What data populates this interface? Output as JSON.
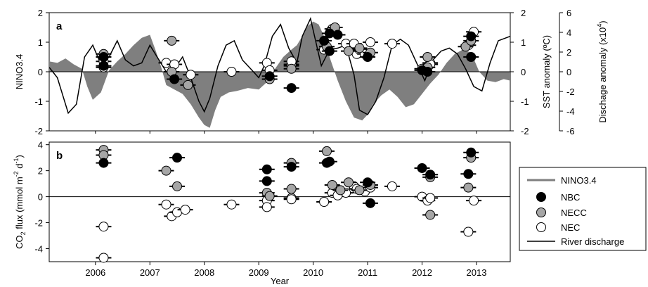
{
  "chart_data": [
    {
      "panel_label": "a",
      "type": "area",
      "ylabel": "NINO3.4",
      "ylim": [
        -2,
        2
      ],
      "y_ticks": [
        "2",
        "1",
        "0",
        "-1",
        "-2"
      ],
      "right_axis1": {
        "label": "SST anomaly (ºC)",
        "ylim": [
          -2,
          2
        ],
        "ticks": [
          "2",
          "1",
          "0",
          "-1",
          "-2"
        ]
      },
      "right_axis2": {
        "label_main": "Dischage anomaly (x10",
        "label_sup": "4",
        "label_end": ")",
        "ylim": [
          -6,
          6
        ],
        "ticks": [
          "6",
          "4",
          "2",
          "0",
          "-2",
          "-4",
          "-6"
        ]
      },
      "xlim": [
        2005.15,
        2013.62
      ],
      "nino_area": {
        "x": [
          2005.15,
          2005.3,
          2005.45,
          2005.6,
          2005.75,
          2005.85,
          2005.95,
          2006.1,
          2006.25,
          2006.4,
          2006.55,
          2006.7,
          2006.85,
          2007.0,
          2007.1,
          2007.2,
          2007.3,
          2007.45,
          2007.6,
          2007.75,
          2007.9,
          2008.0,
          2008.1,
          2008.2,
          2008.3,
          2008.45,
          2008.6,
          2008.8,
          2009.0,
          2009.15,
          2009.3,
          2009.45,
          2009.6,
          2009.7,
          2009.8,
          2009.9,
          2010.0,
          2010.1,
          2010.2,
          2010.3,
          2010.45,
          2010.6,
          2010.75,
          2010.9,
          2011.0,
          2011.1,
          2011.25,
          2011.4,
          2011.55,
          2011.7,
          2011.85,
          2012.0,
          2012.15,
          2012.3,
          2012.45,
          2012.6,
          2012.75,
          2012.9,
          2013.05,
          2013.2,
          2013.35,
          2013.5,
          2013.62
        ],
        "y": [
          0.35,
          0.3,
          0.45,
          0.25,
          0.1,
          -0.5,
          -0.95,
          -0.7,
          0.05,
          0.35,
          0.6,
          0.9,
          1.15,
          1.25,
          0.75,
          0.2,
          -0.45,
          -0.6,
          -0.75,
          -1.1,
          -1.55,
          -1.8,
          -1.9,
          -1.3,
          -0.85,
          -0.7,
          -0.65,
          -0.55,
          -0.6,
          -0.35,
          0.1,
          0.5,
          0.75,
          0.9,
          1.2,
          1.55,
          1.7,
          1.6,
          1.2,
          0.5,
          -0.3,
          -1.0,
          -1.55,
          -1.65,
          -1.45,
          -1.1,
          -0.8,
          -0.6,
          -0.85,
          -1.2,
          -1.1,
          -0.75,
          -0.4,
          -0.1,
          0.3,
          0.6,
          0.75,
          0.65,
          0.0,
          -0.3,
          -0.35,
          -0.25,
          -0.3
        ]
      },
      "discharge_line": {
        "x": [
          2005.15,
          2005.3,
          2005.5,
          2005.65,
          2005.8,
          2005.95,
          2006.1,
          2006.25,
          2006.4,
          2006.55,
          2006.7,
          2006.85,
          2007.0,
          2007.15,
          2007.3,
          2007.45,
          2007.6,
          2007.75,
          2007.9,
          2008.0,
          2008.1,
          2008.25,
          2008.4,
          2008.55,
          2008.7,
          2008.85,
          2009.0,
          2009.1,
          2009.25,
          2009.4,
          2009.55,
          2009.7,
          2009.8,
          2009.95,
          2010.05,
          2010.15,
          2010.3,
          2010.45,
          2010.6,
          2010.75,
          2010.85,
          2011.0,
          2011.15,
          2011.3,
          2011.45,
          2011.6,
          2011.75,
          2011.9,
          2012.05,
          2012.2,
          2012.35,
          2012.5,
          2012.65,
          2012.8,
          2012.95,
          2013.1,
          2013.25,
          2013.4,
          2013.62
        ],
        "y": [
          0.15,
          -0.2,
          -1.4,
          -1.1,
          0.5,
          0.9,
          0.25,
          0.5,
          1.05,
          0.4,
          0.2,
          0.3,
          0.9,
          0.45,
          0.0,
          0.1,
          0.5,
          -0.2,
          -1.0,
          -1.35,
          -0.9,
          0.2,
          0.9,
          1.05,
          0.4,
          0.1,
          -0.2,
          0.2,
          1.2,
          1.6,
          0.8,
          0.3,
          1.2,
          1.8,
          1.0,
          0.2,
          0.75,
          0.8,
          0.9,
          -0.1,
          -1.3,
          -1.45,
          -1.0,
          -0.2,
          0.9,
          1.1,
          0.9,
          0.3,
          -0.3,
          0.4,
          0.7,
          0.8,
          0.6,
          0.1,
          -0.5,
          -0.65,
          0.3,
          1.05,
          1.2
        ]
      },
      "points": {
        "NBC": [
          [
            2006.15,
            0.2
          ],
          [
            2006.15,
            0.5
          ],
          [
            2007.45,
            -0.25
          ],
          [
            2009.2,
            -0.15
          ],
          [
            2009.6,
            -0.55
          ],
          [
            2010.2,
            1.05
          ],
          [
            2010.3,
            0.7
          ],
          [
            2010.3,
            1.3
          ],
          [
            2010.45,
            1.25
          ],
          [
            2011.0,
            0.5
          ],
          [
            2012.0,
            0.05
          ],
          [
            2012.1,
            0.0
          ],
          [
            2012.9,
            0.5
          ],
          [
            2012.9,
            1.2
          ]
        ],
        "NECC": [
          [
            2006.15,
            0.6
          ],
          [
            2007.4,
            1.05
          ],
          [
            2007.7,
            -0.45
          ],
          [
            2007.4,
            0.0
          ],
          [
            2009.2,
            -0.25
          ],
          [
            2009.6,
            0.1
          ],
          [
            2010.25,
            0.85
          ],
          [
            2010.4,
            1.5
          ],
          [
            2010.65,
            0.7
          ],
          [
            2010.85,
            0.8
          ],
          [
            2011.05,
            0.65
          ],
          [
            2012.1,
            0.5
          ],
          [
            2012.1,
            0.15
          ],
          [
            2012.8,
            0.85
          ],
          [
            2012.9,
            1.05
          ]
        ],
        "NEC": [
          [
            2006.15,
            0.35
          ],
          [
            2006.15,
            0.15
          ],
          [
            2007.3,
            0.3
          ],
          [
            2007.45,
            0.25
          ],
          [
            2007.75,
            -0.1
          ],
          [
            2008.5,
            0.0
          ],
          [
            2009.15,
            0.3
          ],
          [
            2009.2,
            0.05
          ],
          [
            2009.6,
            0.2
          ],
          [
            2009.6,
            0.25
          ],
          [
            2009.6,
            0.35
          ],
          [
            2010.2,
            0.75
          ],
          [
            2010.35,
            1.45
          ],
          [
            2010.6,
            0.95
          ],
          [
            2010.75,
            0.95
          ],
          [
            2010.8,
            0.6
          ],
          [
            2010.85,
            0.75
          ],
          [
            2010.95,
            0.6
          ],
          [
            2011.05,
            1.0
          ],
          [
            2011.45,
            0.95
          ],
          [
            2012.0,
            0.1
          ],
          [
            2012.15,
            0.3
          ],
          [
            2012.15,
            0.25
          ],
          [
            2012.85,
            0.9
          ],
          [
            2012.95,
            1.35
          ]
        ]
      }
    },
    {
      "panel_label": "b",
      "type": "scatter",
      "ylabel_main": "CO",
      "ylabel_sub": "2",
      "ylabel_rest": " flux (mmol m",
      "ylabel_sup1": "-2",
      "ylabel_mid": " d",
      "ylabel_sup2": "-1",
      "ylabel_end": ")",
      "ylim": [
        -5,
        4.2
      ],
      "y_ticks": [
        "4",
        "2",
        "0",
        "-2",
        "-4"
      ],
      "xlim": [
        2005.15,
        2013.62
      ],
      "x_ticks": [
        "2006",
        "2007",
        "2008",
        "2009",
        "2010",
        "2011",
        "2012",
        "2013"
      ],
      "xlabel": "Year",
      "points": {
        "NBC": [
          [
            2006.15,
            2.6
          ],
          [
            2007.5,
            3.0
          ],
          [
            2009.15,
            2.1
          ],
          [
            2009.15,
            1.2
          ],
          [
            2009.6,
            2.3
          ],
          [
            2010.25,
            2.6
          ],
          [
            2010.3,
            2.7
          ],
          [
            2011.0,
            1.1
          ],
          [
            2011.05,
            -0.5
          ],
          [
            2012.0,
            2.2
          ],
          [
            2012.15,
            1.7
          ],
          [
            2012.85,
            1.75
          ],
          [
            2012.9,
            3.4
          ]
        ],
        "NECC": [
          [
            2006.15,
            3.6
          ],
          [
            2006.15,
            3.2
          ],
          [
            2007.3,
            2.0
          ],
          [
            2007.5,
            0.8
          ],
          [
            2009.15,
            0.3
          ],
          [
            2009.2,
            0.05
          ],
          [
            2009.6,
            0.6
          ],
          [
            2009.6,
            2.6
          ],
          [
            2010.25,
            3.5
          ],
          [
            2010.35,
            0.9
          ],
          [
            2010.5,
            0.5
          ],
          [
            2010.65,
            1.1
          ],
          [
            2010.85,
            0.5
          ],
          [
            2011.05,
            0.9
          ],
          [
            2012.15,
            1.5
          ],
          [
            2012.15,
            -1.4
          ],
          [
            2012.85,
            0.7
          ],
          [
            2012.9,
            3.0
          ]
        ],
        "NEC": [
          [
            2006.15,
            -2.3
          ],
          [
            2006.15,
            -4.7
          ],
          [
            2007.3,
            -0.6
          ],
          [
            2007.4,
            -1.5
          ],
          [
            2007.5,
            -1.2
          ],
          [
            2007.65,
            -1.0
          ],
          [
            2008.5,
            -0.6
          ],
          [
            2009.15,
            -0.3
          ],
          [
            2009.15,
            -0.8
          ],
          [
            2009.6,
            -0.1
          ],
          [
            2009.6,
            -0.2
          ],
          [
            2010.2,
            -0.4
          ],
          [
            2010.35,
            0.3
          ],
          [
            2010.45,
            0.1
          ],
          [
            2010.6,
            0.3
          ],
          [
            2010.75,
            0.8
          ],
          [
            2010.8,
            0.6
          ],
          [
            2010.95,
            0.4
          ],
          [
            2011.05,
            0.7
          ],
          [
            2011.45,
            0.8
          ],
          [
            2012.0,
            0.0
          ],
          [
            2012.1,
            -0.3
          ],
          [
            2012.15,
            -0.1
          ],
          [
            2012.85,
            -2.7
          ],
          [
            2012.95,
            -0.3
          ]
        ]
      }
    }
  ],
  "legend": {
    "items": [
      {
        "kind": "line-gray",
        "label": "NINO3.4"
      },
      {
        "kind": "dot-black",
        "label": "NBC"
      },
      {
        "kind": "dot-gray",
        "label": "NECC"
      },
      {
        "kind": "dot-white",
        "label": "NEC"
      },
      {
        "kind": "line-black",
        "label": "River discharge"
      }
    ]
  },
  "colors": {
    "nino": "#7f7f7f",
    "nbc": "#000000",
    "necc": "#a6a6a6",
    "nec": "#ffffff",
    "discharge": "#000000"
  }
}
